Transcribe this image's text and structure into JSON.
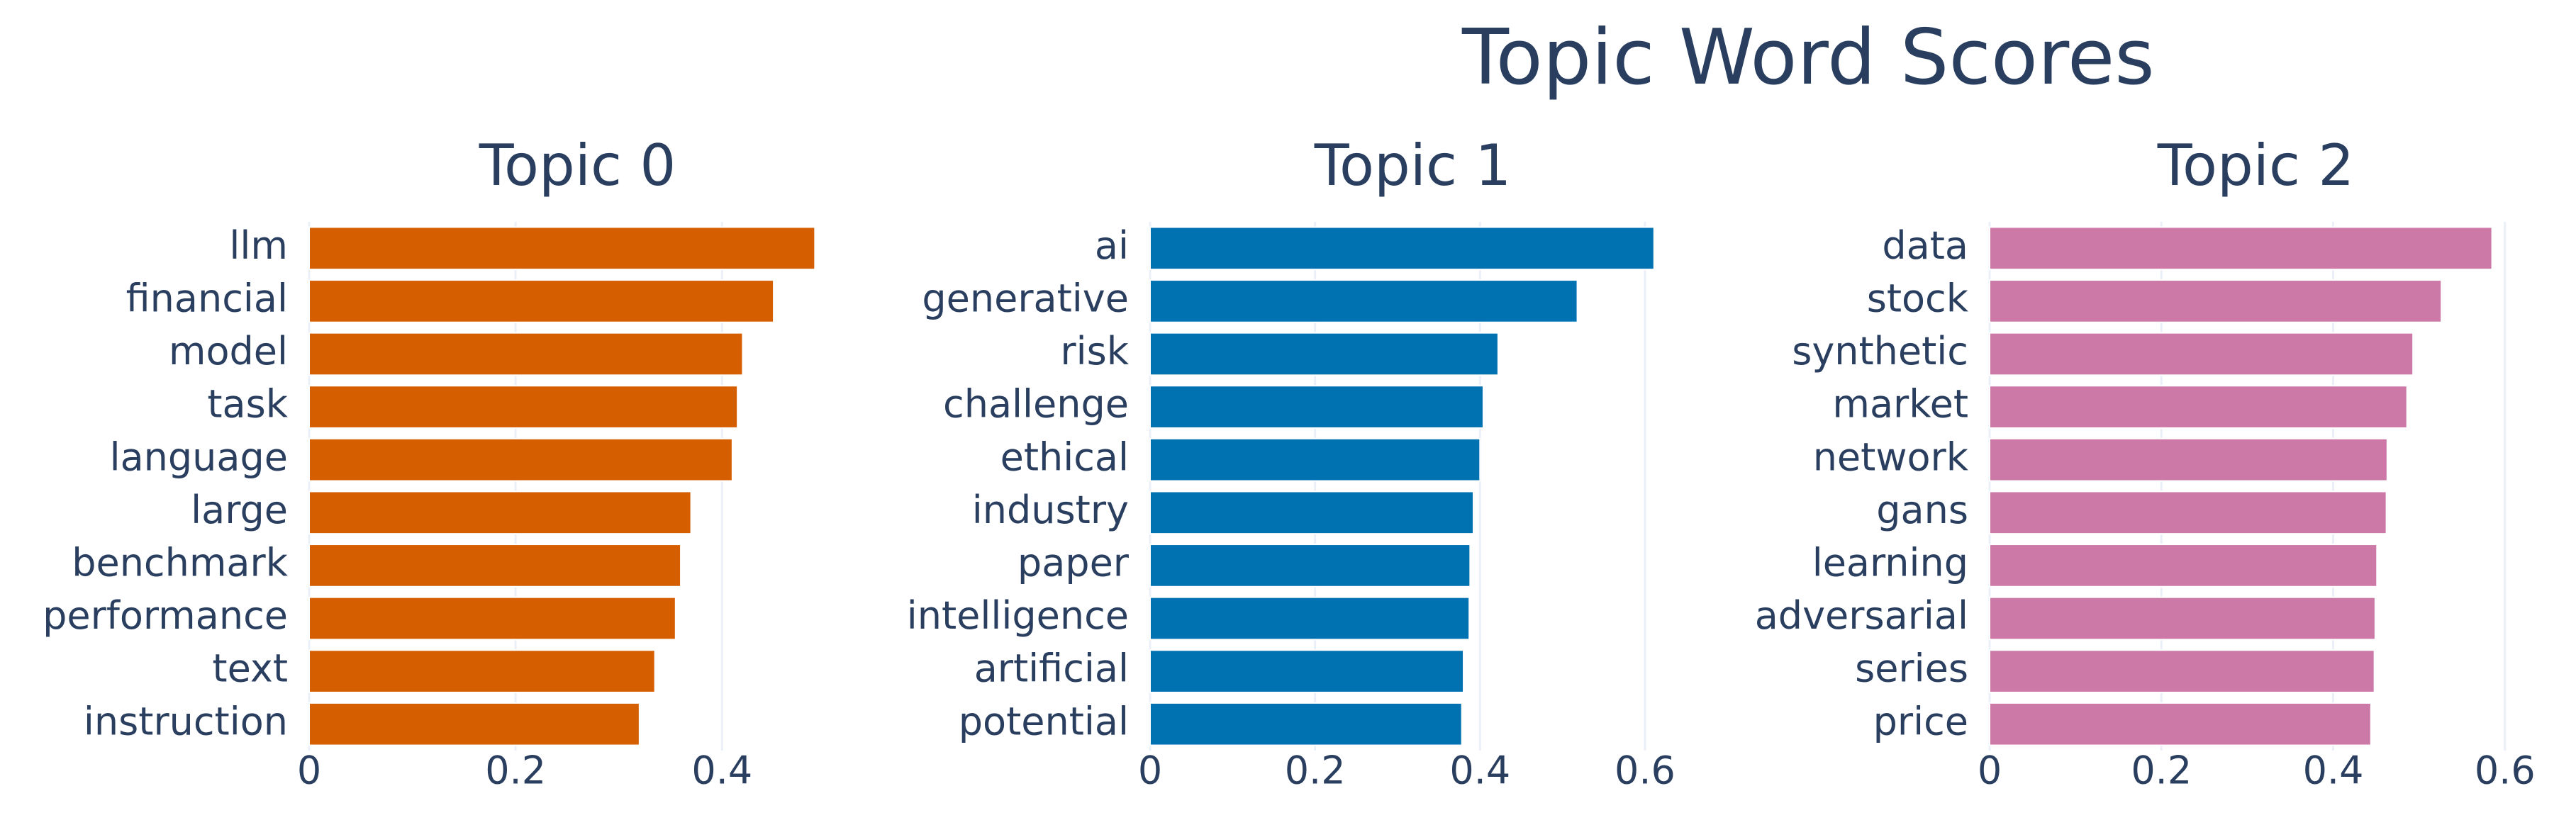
{
  "title": "Topic Word Scores",
  "chart_data": [
    {
      "type": "hbar",
      "title": "Topic 0",
      "color": "#D55E00",
      "categories": [
        "llm",
        "financial",
        "model",
        "task",
        "language",
        "large",
        "benchmark",
        "performance",
        "text",
        "instruction"
      ],
      "values": [
        0.49,
        0.45,
        0.42,
        0.415,
        0.41,
        0.37,
        0.36,
        0.355,
        0.335,
        0.32
      ],
      "xlim": [
        0,
        0.52
      ],
      "xticks": [
        0,
        0.2,
        0.4
      ],
      "grid": true
    },
    {
      "type": "hbar",
      "title": "Topic 1",
      "color": "#0072B2",
      "categories": [
        "ai",
        "generative",
        "risk",
        "challenge",
        "ethical",
        "industry",
        "paper",
        "intelligence",
        "artificial",
        "potential"
      ],
      "values": [
        0.611,
        0.518,
        0.422,
        0.404,
        0.4,
        0.392,
        0.388,
        0.387,
        0.38,
        0.378
      ],
      "xlim": [
        0,
        0.637
      ],
      "xticks": [
        0,
        0.2,
        0.4,
        0.6
      ],
      "grid": true
    },
    {
      "type": "hbar",
      "title": "Topic 2",
      "color": "#CC79A7",
      "categories": [
        "data",
        "stock",
        "synthetic",
        "market",
        "network",
        "gans",
        "learning",
        "adversarial",
        "series",
        "price"
      ],
      "values": [
        0.585,
        0.526,
        0.493,
        0.486,
        0.463,
        0.462,
        0.451,
        0.449,
        0.448,
        0.444
      ],
      "xlim": [
        0,
        0.62
      ],
      "xticks": [
        0,
        0.2,
        0.4,
        0.6
      ],
      "grid": true
    }
  ]
}
